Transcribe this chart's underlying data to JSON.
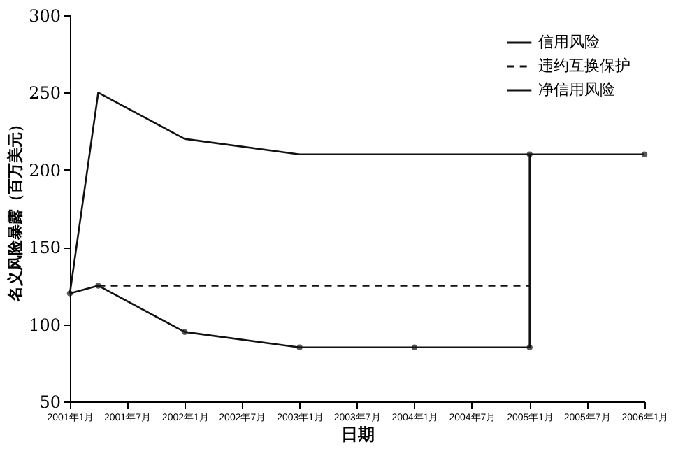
{
  "chart_data": {
    "type": "line",
    "xlabel": "日期",
    "ylabel": "名义风险暴露（百万美元）",
    "xlim": [
      "2001-01",
      "2006-01"
    ],
    "xticks": [
      {
        "value": "2001-01",
        "label": "2001年1月"
      },
      {
        "value": "2001-07",
        "label": "2001年7月"
      },
      {
        "value": "2002-01",
        "label": "2002年1月"
      },
      {
        "value": "2002-07",
        "label": "2002年7月"
      },
      {
        "value": "2003-01",
        "label": "2003年1月"
      },
      {
        "value": "2003-07",
        "label": "2003年7月"
      },
      {
        "value": "2004-01",
        "label": "2004年1月"
      },
      {
        "value": "2004-07",
        "label": "2004年7月"
      },
      {
        "value": "2005-01",
        "label": "2005年1月"
      },
      {
        "value": "2005-07",
        "label": "2005年7月"
      },
      {
        "value": "2006-01",
        "label": "2006年1月"
      }
    ],
    "ylim": [
      50,
      300
    ],
    "yticks": [
      50,
      100,
      150,
      200,
      250,
      300
    ],
    "grid": false,
    "legend": "top right",
    "series": [
      {
        "name": "信用风险",
        "color": "#111111",
        "line_style": "solid",
        "marker": "none",
        "x": [
          "2001-01",
          "2001-04",
          "2002-01",
          "2003-01",
          "2005-01"
        ],
        "values": [
          120,
          250,
          220,
          210,
          210
        ]
      },
      {
        "name": "违约互换保护",
        "color": "#111111",
        "line_style": "dashed",
        "x": [
          "2001-04",
          "2005-01"
        ],
        "values": [
          125,
          125
        ]
      },
      {
        "name": "净信用风险",
        "color": "#111111",
        "line_style": "solid",
        "marker": "circle",
        "x": [
          "2001-01",
          "2001-04",
          "2002-01",
          "2003-01",
          "2004-01",
          "2005-01",
          "2005-01",
          "2006-01"
        ],
        "values": [
          120,
          125,
          95,
          85,
          85,
          85,
          210,
          210
        ]
      }
    ]
  }
}
